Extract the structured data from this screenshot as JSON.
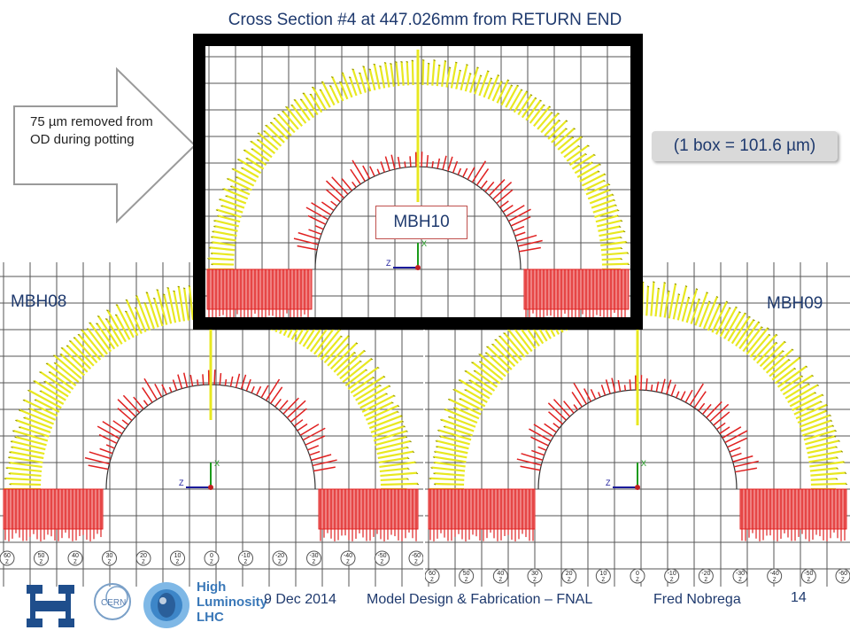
{
  "slide": {
    "title": "Cross Section #4 at 447.026mm from RETURN END",
    "arrow_note": "75 µm removed from OD during potting",
    "scale_note": "(1 box = 101.6 µm)",
    "page_number": "14"
  },
  "panels": {
    "top": {
      "label": "MBH10"
    },
    "left": {
      "label": "MBH08"
    },
    "right": {
      "label": "MBH09"
    }
  },
  "axis_ticks": [
    "60",
    "50",
    "40",
    "30",
    "20",
    "10",
    "0",
    "-10",
    "-20",
    "-30",
    "-40",
    "-50",
    "-60"
  ],
  "axis_tick_sublabel": "Z",
  "triad_labels": {
    "x": "X",
    "z": "Z",
    "y": "Y"
  },
  "footer": {
    "date": "9 Dec 2014",
    "title": "Model Design & Fabrication – FNAL",
    "author": "Fred Nobrega"
  },
  "logos": {
    "fermilab": "fermilab-logo",
    "cern": "CERN",
    "hilumi_lines": [
      "High",
      "Luminosity",
      "LHC"
    ]
  },
  "colors": {
    "title_text": "#1f3a6e",
    "outer_deformation": "#e8e820",
    "inner_deformation": "#e02020",
    "grid": "#555555",
    "frame": "#000000",
    "callout_bg": "#d9d9d9"
  }
}
